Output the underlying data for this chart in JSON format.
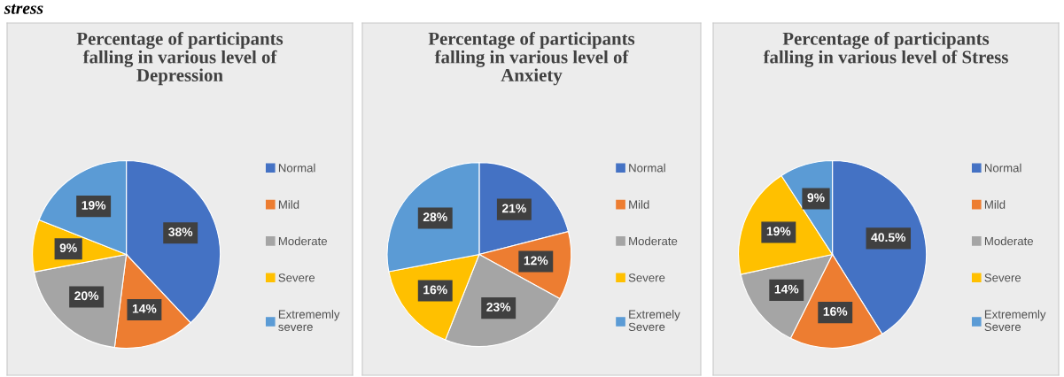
{
  "chart_data": [
    {
      "type": "pie",
      "title": "Percentage of participants\nfalling in various level of\nDepression",
      "annotations": [
        "stress"
      ],
      "categories": [
        "Normal",
        "Mild",
        "Moderate",
        "Severe",
        "Extrememly\nsevere"
      ],
      "values": [
        38,
        14,
        20,
        9,
        19
      ],
      "value_labels": [
        "38%",
        "14%",
        "20%",
        "9%",
        "19%"
      ],
      "colors": [
        "#4472c4",
        "#ed7d31",
        "#a5a5a5",
        "#ffc000",
        "#5b9bd5"
      ],
      "legend": "right"
    },
    {
      "type": "pie",
      "title": "Percentage of participants\nfalling in various level of\nAnxiety",
      "categories": [
        "Normal",
        "Mild",
        "Moderate",
        "Severe",
        "Extremely\nSevere"
      ],
      "values": [
        21,
        12,
        23,
        16,
        28
      ],
      "value_labels": [
        "21%",
        "12%",
        "23%",
        "16%",
        "28%"
      ],
      "colors": [
        "#4472c4",
        "#ed7d31",
        "#a5a5a5",
        "#ffc000",
        "#5b9bd5"
      ],
      "legend": "right"
    },
    {
      "type": "pie",
      "title": "Percentage of participants\nfalling in various level of Stress",
      "categories": [
        "Normal",
        "Mild",
        "Moderate",
        "Severe",
        "Extrememly\nSevere"
      ],
      "values": [
        40.5,
        16,
        14,
        19,
        9
      ],
      "value_labels": [
        "40.5%",
        "16%",
        "14%",
        "19%",
        "9%"
      ],
      "colors": [
        "#4472c4",
        "#ed7d31",
        "#a5a5a5",
        "#ffc000",
        "#5b9bd5"
      ],
      "legend": "right"
    }
  ]
}
